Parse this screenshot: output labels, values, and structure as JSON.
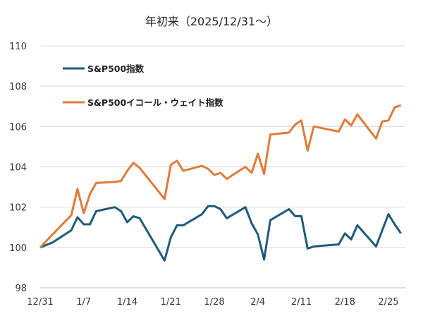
{
  "chart_data": {
    "type": "line",
    "title": "年初来（2025/12/31～）",
    "xlabel": "",
    "ylabel": "",
    "ylim": [
      98,
      110
    ],
    "yticks": [
      "98",
      "100",
      "102",
      "104",
      "106",
      "108",
      "110"
    ],
    "xlim": [
      "2025-12-31",
      "2026-02-27"
    ],
    "xticks": [
      {
        "date": "2025-12-31",
        "label": "12/31"
      },
      {
        "date": "2026-01-07",
        "label": "1/7"
      },
      {
        "date": "2026-01-14",
        "label": "1/14"
      },
      {
        "date": "2026-01-21",
        "label": "1/21"
      },
      {
        "date": "2026-01-28",
        "label": "1/28"
      },
      {
        "date": "2026-02-04",
        "label": "2/4"
      },
      {
        "date": "2026-02-11",
        "label": "2/11"
      },
      {
        "date": "2026-02-18",
        "label": "2/18"
      },
      {
        "date": "2026-02-25",
        "label": "2/25"
      }
    ],
    "grid": "horizontal",
    "legend_position": "top-left",
    "x": [
      "2025-12-31",
      "2026-01-02",
      "2026-01-05",
      "2026-01-06",
      "2026-01-07",
      "2026-01-08",
      "2026-01-09",
      "2026-01-12",
      "2026-01-13",
      "2026-01-14",
      "2026-01-15",
      "2026-01-16",
      "2026-01-20",
      "2026-01-21",
      "2026-01-22",
      "2026-01-23",
      "2026-01-26",
      "2026-01-27",
      "2026-01-28",
      "2026-01-29",
      "2026-01-30",
      "2026-02-02",
      "2026-02-03",
      "2026-02-04",
      "2026-02-05",
      "2026-02-06",
      "2026-02-09",
      "2026-02-10",
      "2026-02-11",
      "2026-02-12",
      "2026-02-13",
      "2026-02-17",
      "2026-02-18",
      "2026-02-19",
      "2026-02-20",
      "2026-02-23",
      "2026-02-24",
      "2026-02-25",
      "2026-02-26",
      "2026-02-27"
    ],
    "series": [
      {
        "name": "S&P500指数",
        "color": "#1f5b78",
        "values": [
          100.0,
          100.25,
          100.85,
          101.5,
          101.15,
          101.15,
          101.8,
          102.0,
          101.8,
          101.25,
          101.55,
          101.45,
          99.35,
          100.5,
          101.1,
          101.1,
          101.65,
          102.05,
          102.05,
          101.9,
          101.45,
          102.0,
          101.2,
          100.65,
          99.4,
          101.35,
          101.9,
          101.55,
          101.55,
          99.95,
          100.05,
          100.15,
          100.7,
          100.4,
          101.1,
          100.05,
          100.85,
          101.65,
          101.15,
          100.7
        ]
      },
      {
        "name": "S&P500イコール・ウェイト指数",
        "color": "#e07b39",
        "values": [
          100.0,
          100.65,
          101.6,
          102.9,
          101.7,
          102.65,
          103.2,
          103.25,
          103.3,
          103.8,
          104.2,
          103.95,
          102.4,
          104.1,
          104.3,
          103.8,
          104.05,
          103.9,
          103.6,
          103.7,
          103.4,
          104.0,
          103.7,
          104.65,
          103.65,
          105.6,
          105.7,
          106.1,
          106.3,
          104.8,
          106.0,
          105.75,
          106.35,
          106.05,
          106.6,
          105.4,
          106.25,
          106.3,
          106.95,
          107.05
        ]
      }
    ]
  }
}
